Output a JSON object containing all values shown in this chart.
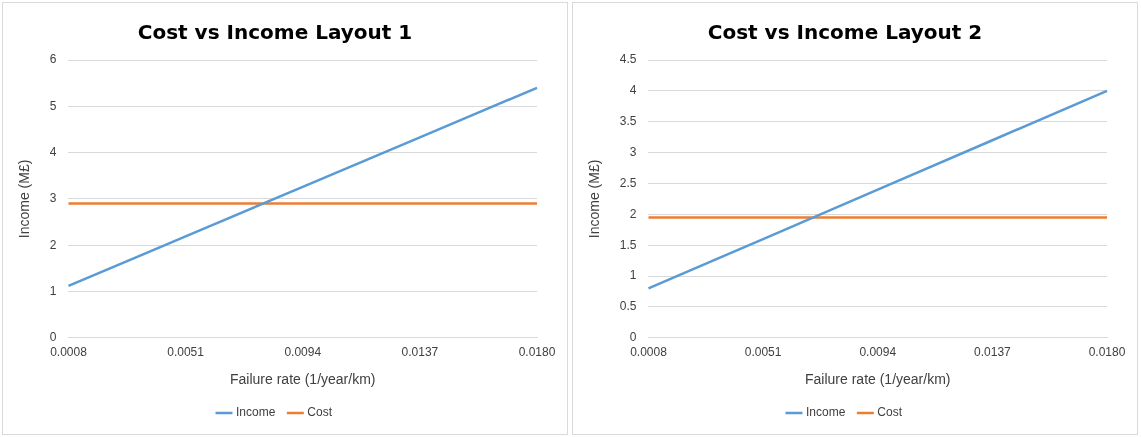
{
  "chart_data": [
    {
      "type": "line",
      "title": "Cost vs Income Layout 1",
      "xlabel": "Failure rate (1/year/km)",
      "ylabel": "Income (M£)",
      "categories": [
        "0.0008",
        "0.0051",
        "0.0094",
        "0.0137",
        "0.0180"
      ],
      "series": [
        {
          "name": "Income",
          "color": "#5b9bd5",
          "values": [
            1.12,
            2.19,
            3.26,
            4.33,
            5.4
          ]
        },
        {
          "name": "Cost",
          "color": "#ed7d31",
          "values": [
            2.9,
            2.9,
            2.9,
            2.9,
            2.9
          ]
        }
      ],
      "ylim": [
        0,
        6
      ],
      "yticks": [
        0,
        1,
        2,
        3,
        4,
        5,
        6
      ],
      "grid": "y",
      "legend": "bottom",
      "marker": "none"
    },
    {
      "type": "line",
      "title": "Cost vs Income Layout 2",
      "xlabel": "Failure rate (1/year/km)",
      "ylabel": "Income (M£)",
      "categories": [
        "0.0008",
        "0.0051",
        "0.0094",
        "0.0137",
        "0.0180"
      ],
      "series": [
        {
          "name": "Income",
          "color": "#5b9bd5",
          "values": [
            0.8,
            1.6,
            2.4,
            3.2,
            4.0
          ]
        },
        {
          "name": "Cost",
          "color": "#ed7d31",
          "values": [
            1.95,
            1.95,
            1.95,
            1.95,
            1.95
          ]
        }
      ],
      "ylim": [
        0,
        4.5
      ],
      "yticks": [
        0,
        0.5,
        1,
        1.5,
        2,
        2.5,
        3,
        3.5,
        4,
        4.5
      ],
      "grid": "y",
      "legend": "bottom",
      "marker": "none"
    }
  ]
}
